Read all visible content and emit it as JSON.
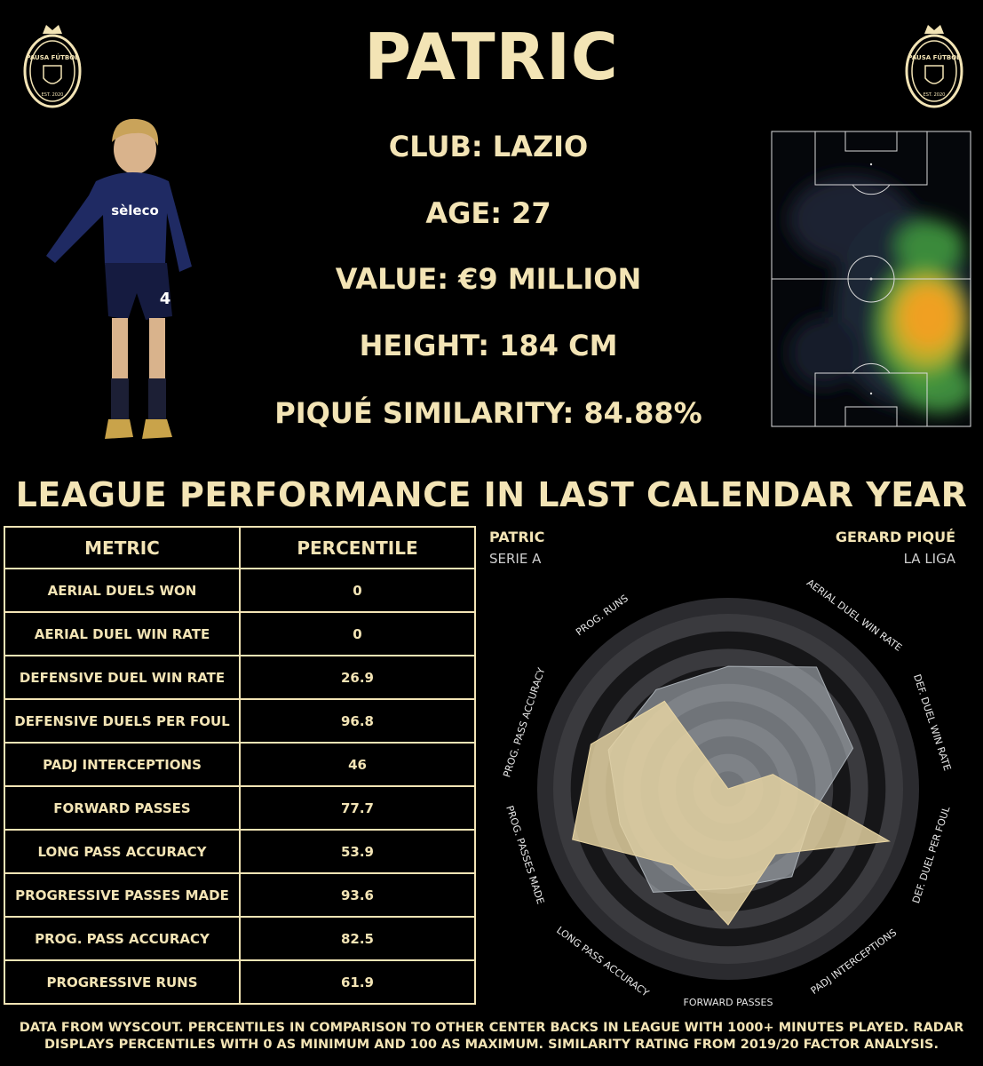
{
  "header": {
    "title": "PATRIC",
    "logo_text": "PAUSA FÚTBOL",
    "logo_est": "EST. 2020"
  },
  "info": {
    "club": "CLUB: LAZIO",
    "age": "AGE: 27",
    "value": "VALUE: €9 MILLION",
    "height": "HEIGHT: 184 CM",
    "similarity": "PIQUÉ SIMILARITY: 84.88%"
  },
  "player_photo": {
    "shirt_sponsor": "sèleco",
    "shirt_number": "4"
  },
  "section_title": "LEAGUE PERFORMANCE IN LAST CALENDAR YEAR",
  "table": {
    "headers": [
      "METRIC",
      "PERCENTILE"
    ],
    "rows": [
      {
        "metric": "AERIAL DUELS WON",
        "percentile": "0"
      },
      {
        "metric": "AERIAL DUEL WIN RATE",
        "percentile": "0"
      },
      {
        "metric": "DEFENSIVE DUEL WIN RATE",
        "percentile": "26.9"
      },
      {
        "metric": "DEFENSIVE DUELS PER FOUL",
        "percentile": "96.8"
      },
      {
        "metric": "PADJ INTERCEPTIONS",
        "percentile": "46"
      },
      {
        "metric": "FORWARD PASSES",
        "percentile": "77.7"
      },
      {
        "metric": "LONG PASS ACCURACY",
        "percentile": "53.9"
      },
      {
        "metric": "PROGRESSIVE PASSES MADE",
        "percentile": "93.6"
      },
      {
        "metric": "PROG. PASS ACCURACY",
        "percentile": "82.5"
      },
      {
        "metric": "PROGRESSIVE RUNS",
        "percentile": "61.9"
      }
    ]
  },
  "chart_data": {
    "type": "radar",
    "range": [
      0,
      100
    ],
    "axes": [
      "AERIAL DUELS WON",
      "AERIAL DUEL WIN RATE",
      "DEF. DUEL WIN RATE",
      "DEF. DUEL PER FOUL",
      "PADJ INTERCEPTIONS",
      "FORWARD PASSES",
      "LONG PASS ACCURACY",
      "PROG. PASSES MADE",
      "PROG. PASS ACCURACY",
      "PROG. RUNS"
    ],
    "series": [
      {
        "name": "PATRIC",
        "subtitle": "SERIE A",
        "color": "#e8d5a3",
        "values": [
          0,
          0,
          26.9,
          96.8,
          46,
          77.7,
          53.9,
          93.6,
          82.5,
          61.9
        ]
      },
      {
        "name": "GERARD PIQUÉ",
        "subtitle": "LA LIGA",
        "color": "#a8aeb4",
        "values": [
          70,
          86,
          75,
          50,
          62,
          57,
          73,
          65,
          72,
          70
        ]
      }
    ]
  },
  "footer": "DATA FROM WYSCOUT. PERCENTILES IN COMPARISON TO OTHER CENTER BACKS IN LEAGUE WITH 1000+ MINUTES PLAYED. RADAR DISPLAYS PERCENTILES WITH 0 AS MINIMUM AND 100 AS MAXIMUM. SIMILARITY RATING FROM 2019/20 FACTOR ANALYSIS.",
  "colors": {
    "accent": "#f3e4b5",
    "background": "#000000"
  }
}
